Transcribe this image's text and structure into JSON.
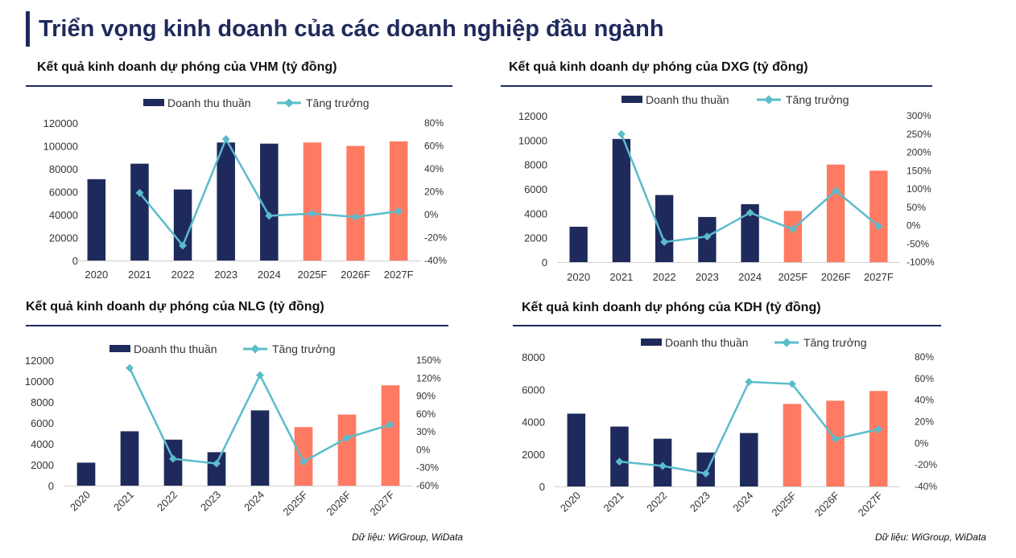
{
  "page": {
    "title": "Triển vọng kinh doanh của các doanh nghiệp đầu ngành",
    "source_left": "Dữ liệu: WiGroup, WiData",
    "source_right": "Dữ liệu: WiGroup, WiData"
  },
  "colors": {
    "navy": "#1f2a5c",
    "forecast": "#ff7a62",
    "growth": "#5bbccb",
    "rule": "#1f2a5c"
  },
  "chart_data": [
    {
      "type": "bar",
      "title": "Kết quả kinh doanh dự phóng của VHM (tỷ đồng)",
      "categories": [
        "2020",
        "2021",
        "2022",
        "2023",
        "2024",
        "2025F",
        "2026F",
        "2027F"
      ],
      "series": [
        {
          "name": "Doanh thu thuần",
          "axis": "left",
          "values": [
            71000,
            84500,
            62000,
            103000,
            102000,
            103000,
            100000,
            104000
          ],
          "forecast_from": "2025F"
        },
        {
          "name": "Tăng trưởng",
          "type": "line",
          "axis": "right",
          "values": [
            null,
            19,
            -27,
            66,
            -1,
            1,
            -2,
            3
          ]
        }
      ],
      "y_left": {
        "min": 0,
        "max": 120000,
        "ticks": [
          "0",
          "20000",
          "40000",
          "60000",
          "80000",
          "100000",
          "120000"
        ]
      },
      "y_right": {
        "min": -40,
        "max": 80,
        "ticks": [
          "-40%",
          "-20%",
          "0%",
          "20%",
          "40%",
          "60%",
          "80%"
        ]
      },
      "legend": "top",
      "grid": false
    },
    {
      "type": "bar",
      "title": "Kết quả kinh doanh dự phóng của DXG (tỷ đồng)",
      "categories": [
        "2020",
        "2021",
        "2022",
        "2023",
        "2024",
        "2025F",
        "2026F",
        "2027F"
      ],
      "series": [
        {
          "name": "Doanh thu thuần",
          "axis": "left",
          "values": [
            2900,
            10100,
            5500,
            3700,
            4750,
            4200,
            8000,
            7500
          ],
          "forecast_from": "2025F"
        },
        {
          "name": "Tăng trưởng",
          "type": "line",
          "axis": "right",
          "values": [
            null,
            250,
            -45,
            -30,
            35,
            -10,
            95,
            -2
          ]
        }
      ],
      "y_left": {
        "min": 0,
        "max": 12000,
        "ticks": [
          "0",
          "2000",
          "4000",
          "6000",
          "8000",
          "10000",
          "12000"
        ]
      },
      "y_right": {
        "min": -100,
        "max": 300,
        "ticks": [
          "-100%",
          "-50%",
          "0%",
          "50%",
          "100%",
          "150%",
          "200%",
          "250%",
          "300%"
        ]
      },
      "legend": "top",
      "grid": false
    },
    {
      "type": "bar",
      "title": "Kết quả kinh doanh dự phóng của NLG (tỷ đồng)",
      "categories": [
        "2020",
        "2021",
        "2022",
        "2023",
        "2024",
        "2025F",
        "2026F",
        "2027F"
      ],
      "series": [
        {
          "name": "Doanh thu thuần",
          "axis": "left",
          "values": [
            2200,
            5200,
            4400,
            3200,
            7200,
            5600,
            6800,
            9600
          ],
          "forecast_from": "2025F"
        },
        {
          "name": "Tăng trưởng",
          "type": "line",
          "axis": "right",
          "values": [
            null,
            137,
            -15,
            -23,
            125,
            -20,
            20,
            42
          ]
        }
      ],
      "y_left": {
        "min": 0,
        "max": 12000,
        "ticks": [
          "0",
          "2000",
          "4000",
          "6000",
          "8000",
          "10000",
          "12000"
        ]
      },
      "y_right": {
        "min": -60,
        "max": 150,
        "ticks": [
          "-60%",
          "-30%",
          "0%",
          "30%",
          "60%",
          "90%",
          "120%",
          "150%"
        ]
      },
      "legend": "top",
      "grid": false
    },
    {
      "type": "bar",
      "title": "Kết quả kinh doanh dự phóng của KDH (tỷ đồng)",
      "categories": [
        "2020",
        "2021",
        "2022",
        "2023",
        "2024",
        "2025F",
        "2026F",
        "2027F"
      ],
      "series": [
        {
          "name": "Doanh thu thuần",
          "axis": "left",
          "values": [
            4500,
            3700,
            2950,
            2100,
            3300,
            5100,
            5300,
            5900
          ],
          "forecast_from": "2025F"
        },
        {
          "name": "Tăng trưởng",
          "type": "line",
          "axis": "right",
          "values": [
            null,
            -17,
            -21,
            -28,
            57,
            55,
            4,
            13
          ]
        }
      ],
      "y_left": {
        "min": 0,
        "max": 8000,
        "ticks": [
          "0",
          "2000",
          "4000",
          "6000",
          "8000"
        ]
      },
      "y_right": {
        "min": -40,
        "max": 80,
        "ticks": [
          "-40%",
          "-20%",
          "0%",
          "20%",
          "40%",
          "60%",
          "80%"
        ]
      },
      "legend": "top",
      "grid": false
    }
  ]
}
